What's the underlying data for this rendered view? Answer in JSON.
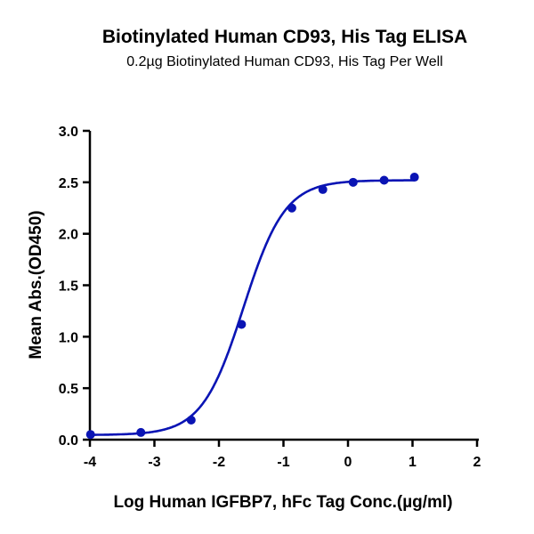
{
  "chart_data": {
    "type": "scatter",
    "title": "Biotinylated Human CD93, His Tag ELISA",
    "subtitle": "0.2µg Biotinylated Human CD93, His Tag Per Well",
    "xlabel": "Log Human IGFBP7, hFc Tag Conc.(µg/ml)",
    "ylabel": "Mean Abs.(OD450)",
    "xlim": [
      -4,
      2
    ],
    "ylim": [
      0,
      3
    ],
    "xticks": [
      "-4",
      "-3",
      "-2",
      "-1",
      "0",
      "1",
      "2"
    ],
    "yticks": [
      "0.0",
      "0.5",
      "1.0",
      "1.5",
      "2.0",
      "2.5",
      "3.0"
    ],
    "grid": false,
    "color": "#0a14b4",
    "series": [
      {
        "name": "Biotinylated Human CD93",
        "x": [
          -3.99,
          -3.21,
          -2.43,
          -1.65,
          -0.87,
          -0.39,
          0.08,
          0.56,
          1.03
        ],
        "y": [
          0.05,
          0.07,
          0.19,
          1.12,
          2.25,
          2.43,
          2.5,
          2.52,
          2.55
        ]
      }
    ],
    "fit": {
      "model": "4PL",
      "bottom": 0.045,
      "top": 2.52,
      "logEC50": -1.62,
      "hill": 1.35
    }
  }
}
